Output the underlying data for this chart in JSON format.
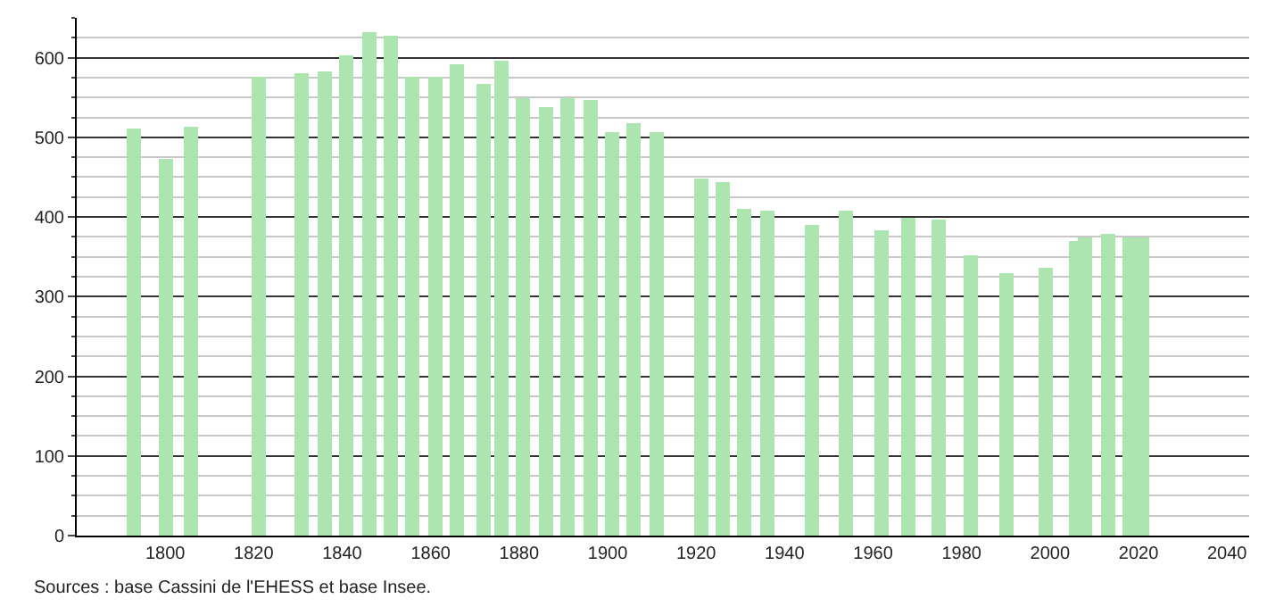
{
  "chart_data": {
    "type": "bar",
    "x": [
      1793,
      1800,
      1806,
      1821,
      1831,
      1836,
      1841,
      1846,
      1851,
      1856,
      1861,
      1866,
      1872,
      1876,
      1881,
      1886,
      1891,
      1896,
      1901,
      1906,
      1911,
      1921,
      1926,
      1931,
      1936,
      1946,
      1954,
      1962,
      1968,
      1975,
      1982,
      1990,
      1999,
      2006,
      2008,
      2013,
      2018,
      2021
    ],
    "values": [
      511,
      473,
      513,
      575,
      580,
      582,
      602,
      631,
      627,
      575,
      575,
      591,
      566,
      596,
      549,
      537,
      549,
      546,
      506,
      517,
      506,
      449,
      443,
      411,
      409,
      391,
      409,
      384,
      400,
      396,
      353,
      330,
      337,
      369,
      375,
      378,
      374,
      375
    ],
    "color": "#ade5b0",
    "xlim": [
      1780,
      2045
    ],
    "xticks": [
      1800,
      1820,
      1840,
      1860,
      1880,
      1900,
      1920,
      1940,
      1960,
      1980,
      2000,
      2020,
      2040
    ],
    "ylim": [
      0,
      650
    ],
    "yticks": [
      0,
      {
        "value": 25,
        "label": null
      },
      {
        "value": 50,
        "label": null
      },
      {
        "value": 75,
        "label": null
      },
      100,
      {
        "value": 125,
        "label": null
      },
      {
        "value": 150,
        "label": null
      },
      {
        "value": 175,
        "label": null
      },
      200,
      {
        "value": 225,
        "label": null
      },
      {
        "value": 250,
        "label": null
      },
      {
        "value": 275,
        "label": null
      },
      300,
      {
        "value": 325,
        "label": null
      },
      {
        "value": 350,
        "label": null
      },
      {
        "value": 375,
        "label": null
      },
      400,
      {
        "value": 425,
        "label": null
      },
      {
        "value": 450,
        "label": null
      },
      {
        "value": 475,
        "label": null
      },
      500,
      {
        "value": 525,
        "label": null
      },
      {
        "value": 550,
        "label": null
      },
      {
        "value": 575,
        "label": null
      },
      600,
      {
        "value": 625,
        "label": null
      },
      {
        "value": 650,
        "label": null
      }
    ],
    "grid": "y",
    "annotations": [
      "Sources : base Cassini de l'EHESS et base Insee."
    ]
  }
}
